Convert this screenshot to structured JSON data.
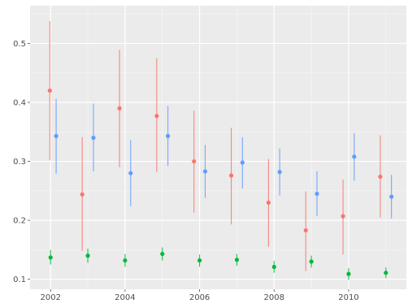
{
  "chart_data": {
    "type": "scatter",
    "title": "",
    "xlabel": "",
    "ylabel": "",
    "xlim": [
      2001.45,
      2011.55
    ],
    "ylim": [
      0.083,
      0.564
    ],
    "x_ticks": [
      "2002",
      "2004",
      "2006",
      "2008",
      "2010"
    ],
    "y_ticks": [
      "0.1",
      "0.2",
      "0.3",
      "0.4",
      "0.5"
    ],
    "grid": true,
    "legend": "none",
    "series": [
      {
        "color": "#F8766D",
        "points": [
          {
            "x": 2001.98,
            "y": 0.42,
            "low": 0.302,
            "high": 0.538
          },
          {
            "x": 2002.85,
            "y": 0.244,
            "low": 0.148,
            "high": 0.341
          },
          {
            "x": 2003.85,
            "y": 0.39,
            "low": 0.29,
            "high": 0.489
          },
          {
            "x": 2004.85,
            "y": 0.377,
            "low": 0.282,
            "high": 0.475
          },
          {
            "x": 2005.85,
            "y": 0.3,
            "low": 0.213,
            "high": 0.386
          },
          {
            "x": 2006.85,
            "y": 0.276,
            "low": 0.193,
            "high": 0.357
          },
          {
            "x": 2007.85,
            "y": 0.23,
            "low": 0.155,
            "high": 0.304
          },
          {
            "x": 2008.85,
            "y": 0.183,
            "low": 0.114,
            "high": 0.249
          },
          {
            "x": 2009.85,
            "y": 0.207,
            "low": 0.142,
            "high": 0.269
          },
          {
            "x": 2010.85,
            "y": 0.274,
            "low": 0.205,
            "high": 0.344
          }
        ]
      },
      {
        "color": "#619CFF",
        "points": [
          {
            "x": 2002.15,
            "y": 0.343,
            "low": 0.279,
            "high": 0.406
          },
          {
            "x": 2003.15,
            "y": 0.34,
            "low": 0.283,
            "high": 0.398
          },
          {
            "x": 2004.15,
            "y": 0.28,
            "low": 0.224,
            "high": 0.336
          },
          {
            "x": 2005.15,
            "y": 0.343,
            "low": 0.292,
            "high": 0.394
          },
          {
            "x": 2006.15,
            "y": 0.283,
            "low": 0.238,
            "high": 0.328
          },
          {
            "x": 2007.15,
            "y": 0.298,
            "low": 0.254,
            "high": 0.341
          },
          {
            "x": 2008.15,
            "y": 0.282,
            "low": 0.242,
            "high": 0.322
          },
          {
            "x": 2009.15,
            "y": 0.245,
            "low": 0.207,
            "high": 0.283
          },
          {
            "x": 2010.15,
            "y": 0.308,
            "low": 0.267,
            "high": 0.348
          },
          {
            "x": 2011.15,
            "y": 0.24,
            "low": 0.203,
            "high": 0.277
          }
        ]
      },
      {
        "color": "#00BA38",
        "points": [
          {
            "x": 2002.0,
            "y": 0.137,
            "low": 0.125,
            "high": 0.15
          },
          {
            "x": 2003.0,
            "y": 0.14,
            "low": 0.128,
            "high": 0.152
          },
          {
            "x": 2004.0,
            "y": 0.132,
            "low": 0.121,
            "high": 0.143
          },
          {
            "x": 2005.0,
            "y": 0.143,
            "low": 0.132,
            "high": 0.154
          },
          {
            "x": 2006.0,
            "y": 0.132,
            "low": 0.121,
            "high": 0.142
          },
          {
            "x": 2007.0,
            "y": 0.133,
            "low": 0.123,
            "high": 0.143
          },
          {
            "x": 2008.0,
            "y": 0.121,
            "low": 0.111,
            "high": 0.131
          },
          {
            "x": 2009.0,
            "y": 0.13,
            "low": 0.12,
            "high": 0.14
          },
          {
            "x": 2010.0,
            "y": 0.109,
            "low": 0.099,
            "high": 0.119
          },
          {
            "x": 2011.0,
            "y": 0.111,
            "low": 0.102,
            "high": 0.12
          }
        ]
      }
    ]
  }
}
